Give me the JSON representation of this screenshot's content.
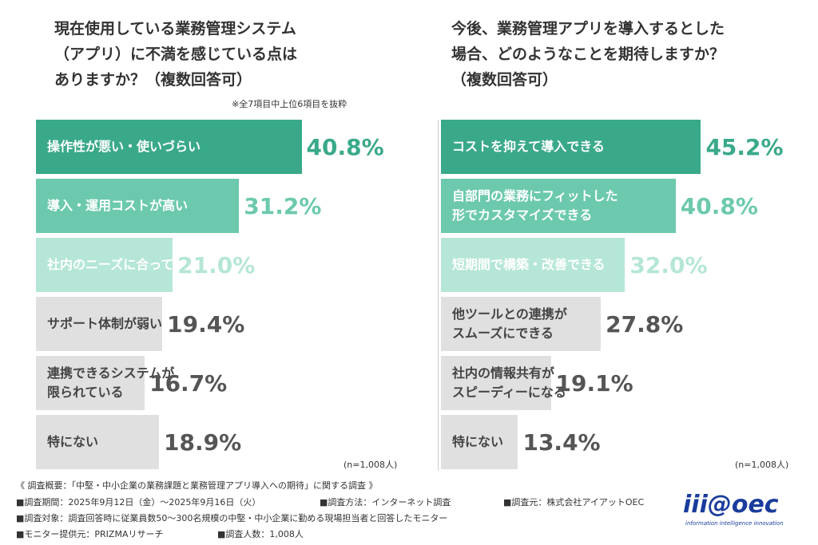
{
  "chart_data": [
    {
      "type": "bar",
      "title": "現在使用している業務管理システム\n（アプリ）に不満を感じている点は\nありますか？（複数回答可）",
      "note": "※全7項目中上位6項目を抜粋",
      "sample_label": "(n=1,008人)",
      "categories": [
        "操作性が悪い・使いづらい",
        "導入・運用コストが高い",
        "社内のニーズに合っていない",
        "サポート体制が弱い",
        "連携できるシステムが\n限られている",
        "特にない"
      ],
      "values": [
        40.8,
        31.2,
        21.0,
        19.4,
        16.7,
        18.9
      ],
      "value_labels": [
        "40.8%",
        "31.2%",
        "21.0%",
        "19.4%",
        "16.7%",
        "18.9%"
      ],
      "colors": [
        "#3aa98a",
        "#6cc9ad",
        "#b5e6d7",
        "#e0e0e0",
        "#e0e0e0",
        "#e0e0e0"
      ],
      "text_colors": [
        "#ffffff",
        "#ffffff",
        "#ffffff",
        "#444444",
        "#444444",
        "#444444"
      ],
      "value_label_colors": [
        "#3aa98a",
        "#6cc9ad",
        "#b5e6d7",
        "#555555",
        "#555555",
        "#555555"
      ]
    },
    {
      "type": "bar",
      "title": "今後、業務管理アプリを導入するとした\n場合、どのようなことを期待しますか？\n（複数回答可）",
      "sample_label": "(n=1,008人)",
      "categories": [
        "コストを抑えて導入できる",
        "自部門の業務にフィットした\n形でカスタマイズできる",
        "短期間で構築・改善できる",
        "他ツールとの連携が\nスムーズにできる",
        "社内の情報共有が\nスピーディーになる",
        "特にない"
      ],
      "values": [
        45.2,
        40.8,
        32.0,
        27.8,
        19.1,
        13.4
      ],
      "value_labels": [
        "45.2%",
        "40.8%",
        "32.0%",
        "27.8%",
        "19.1%",
        "13.4%"
      ],
      "colors": [
        "#3aa98a",
        "#6cc9ad",
        "#b5e6d7",
        "#e0e0e0",
        "#e0e0e0",
        "#e0e0e0"
      ],
      "text_colors": [
        "#ffffff",
        "#ffffff",
        "#ffffff",
        "#444444",
        "#444444",
        "#444444"
      ],
      "value_label_colors": [
        "#3aa98a",
        "#6cc9ad",
        "#b5e6d7",
        "#555555",
        "#555555",
        "#555555"
      ]
    }
  ],
  "footer": {
    "heading": "《 調査概要：「中堅・中小企業の業務課題と業務管理アプリ導入への期待」に関する調査 》",
    "items": [
      "■調査期間：2025年9月12日（金）〜2025年9月16日（火）",
      "■調査方法：インターネット調査",
      "■調査元：株式会社アイアットOEC",
      "■調査対象：調査回答時に従業員数50〜300名規模の中堅・中小企業に勤める現場担当者と回答したモニター",
      "■モニター提供元：PRIZMAリサーチ",
      "■調査人数：1,008人"
    ]
  },
  "logo": {
    "name": "iii@oec",
    "tagline": "information intelligence innovation"
  }
}
